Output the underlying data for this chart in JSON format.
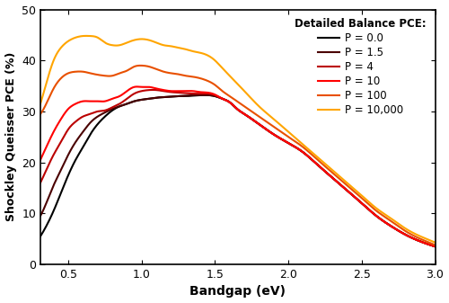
{
  "title": "",
  "xlabel": "Bandgap (eV)",
  "ylabel": "Shockley Queisser PCE (%)",
  "xlim": [
    0.31,
    3.0
  ],
  "ylim": [
    0,
    50
  ],
  "xticks": [
    0.5,
    1.0,
    1.5,
    2.0,
    2.5,
    3.0
  ],
  "yticks": [
    0,
    10,
    20,
    30,
    40,
    50
  ],
  "legend_title": "Detailed Balance PCE:",
  "legend_labels": [
    "P = 0.0",
    "P = 1.5",
    "P = 4",
    "P = 10",
    "P = 100",
    "P = 10,000"
  ],
  "colors": [
    "#000000",
    "#4a0000",
    "#bb0000",
    "#ff0000",
    "#e85000",
    "#ffa500"
  ],
  "linewidth": 1.5,
  "background": "#ffffff",
  "curves": {
    "P0": {
      "x": [
        0.31,
        0.35,
        0.4,
        0.45,
        0.5,
        0.55,
        0.6,
        0.65,
        0.7,
        0.75,
        0.8,
        0.85,
        0.9,
        0.95,
        1.0,
        1.05,
        1.1,
        1.15,
        1.2,
        1.25,
        1.3,
        1.35,
        1.4,
        1.45,
        1.5,
        1.55,
        1.6,
        1.65,
        1.7,
        1.8,
        1.9,
        2.0,
        2.1,
        2.2,
        2.3,
        2.4,
        2.5,
        2.6,
        2.7,
        2.8,
        2.9,
        3.0
      ],
      "y": [
        5.5,
        7.5,
        10.5,
        14.0,
        17.5,
        20.5,
        23.0,
        25.5,
        27.5,
        29.0,
        30.2,
        31.0,
        31.5,
        32.0,
        32.3,
        32.5,
        32.7,
        32.8,
        32.9,
        33.0,
        33.0,
        33.1,
        33.2,
        33.2,
        33.0,
        32.5,
        31.8,
        30.5,
        29.5,
        27.5,
        25.5,
        23.8,
        22.0,
        19.5,
        17.0,
        14.5,
        12.0,
        9.5,
        7.5,
        5.8,
        4.5,
        3.5
      ]
    },
    "P1_5": {
      "x": [
        0.31,
        0.35,
        0.4,
        0.45,
        0.5,
        0.55,
        0.6,
        0.65,
        0.7,
        0.75,
        0.8,
        0.85,
        0.9,
        0.95,
        1.0,
        1.05,
        1.1,
        1.15,
        1.2,
        1.25,
        1.3,
        1.35,
        1.4,
        1.45,
        1.5,
        1.55,
        1.6,
        1.65,
        1.7,
        1.8,
        1.9,
        2.0,
        2.1,
        2.2,
        2.3,
        2.4,
        2.5,
        2.6,
        2.7,
        2.8,
        2.9,
        3.0
      ],
      "y": [
        9.5,
        12.0,
        15.5,
        18.5,
        21.5,
        24.0,
        26.0,
        27.8,
        29.0,
        29.8,
        30.5,
        31.0,
        31.5,
        32.0,
        32.3,
        32.5,
        32.7,
        32.8,
        32.9,
        33.0,
        33.1,
        33.2,
        33.2,
        33.2,
        33.0,
        32.5,
        31.8,
        30.5,
        29.5,
        27.5,
        25.5,
        23.8,
        22.0,
        19.5,
        17.0,
        14.5,
        12.0,
        9.5,
        7.5,
        5.8,
        4.5,
        3.5
      ]
    },
    "P4": {
      "x": [
        0.31,
        0.35,
        0.4,
        0.45,
        0.5,
        0.55,
        0.6,
        0.65,
        0.7,
        0.75,
        0.8,
        0.85,
        0.9,
        0.95,
        1.0,
        1.05,
        1.1,
        1.15,
        1.2,
        1.25,
        1.3,
        1.35,
        1.4,
        1.45,
        1.5,
        1.55,
        1.6,
        1.65,
        1.7,
        1.8,
        1.9,
        2.0,
        2.1,
        2.2,
        2.3,
        2.4,
        2.5,
        2.6,
        2.7,
        2.8,
        2.9,
        3.0
      ],
      "y": [
        16.0,
        18.5,
        21.5,
        24.0,
        26.5,
        28.0,
        29.0,
        29.5,
        30.0,
        30.2,
        30.8,
        31.5,
        32.5,
        33.5,
        34.0,
        34.2,
        34.2,
        34.0,
        33.8,
        33.7,
        33.6,
        33.5,
        33.5,
        33.5,
        33.2,
        32.5,
        31.8,
        30.5,
        29.5,
        27.5,
        25.5,
        23.8,
        22.0,
        19.5,
        17.0,
        14.5,
        12.0,
        9.5,
        7.5,
        5.8,
        4.5,
        3.5
      ]
    },
    "P10": {
      "x": [
        0.31,
        0.35,
        0.4,
        0.45,
        0.5,
        0.55,
        0.6,
        0.65,
        0.7,
        0.75,
        0.8,
        0.85,
        0.9,
        0.95,
        1.0,
        1.05,
        1.1,
        1.15,
        1.2,
        1.25,
        1.3,
        1.35,
        1.4,
        1.45,
        1.5,
        1.55,
        1.6,
        1.65,
        1.7,
        1.8,
        1.9,
        2.0,
        2.1,
        2.2,
        2.3,
        2.4,
        2.5,
        2.6,
        2.7,
        2.8,
        2.9,
        3.0
      ],
      "y": [
        20.5,
        23.0,
        26.0,
        28.5,
        30.5,
        31.5,
        32.0,
        32.0,
        32.0,
        32.0,
        32.5,
        33.0,
        34.0,
        34.8,
        34.8,
        34.8,
        34.5,
        34.2,
        34.0,
        34.0,
        34.0,
        34.0,
        33.8,
        33.7,
        33.3,
        32.5,
        31.8,
        30.5,
        29.5,
        27.5,
        25.5,
        23.8,
        22.0,
        19.5,
        17.0,
        14.5,
        12.0,
        9.5,
        7.5,
        5.8,
        4.5,
        3.5
      ]
    },
    "P100": {
      "x": [
        0.31,
        0.35,
        0.4,
        0.45,
        0.5,
        0.55,
        0.6,
        0.65,
        0.7,
        0.75,
        0.8,
        0.85,
        0.9,
        0.95,
        1.0,
        1.05,
        1.1,
        1.15,
        1.2,
        1.25,
        1.3,
        1.35,
        1.4,
        1.45,
        1.5,
        1.55,
        1.6,
        1.65,
        1.7,
        1.8,
        1.9,
        2.0,
        2.1,
        2.2,
        2.3,
        2.4,
        2.5,
        2.6,
        2.7,
        2.8,
        2.9,
        3.0
      ],
      "y": [
        29.5,
        31.5,
        34.5,
        36.5,
        37.5,
        37.8,
        37.8,
        37.5,
        37.2,
        37.0,
        37.0,
        37.5,
        38.0,
        38.8,
        39.0,
        38.8,
        38.3,
        37.8,
        37.5,
        37.3,
        37.0,
        36.8,
        36.5,
        36.0,
        35.2,
        34.0,
        33.0,
        32.0,
        31.0,
        29.0,
        27.0,
        25.0,
        23.0,
        20.5,
        18.0,
        15.5,
        13.0,
        10.5,
        8.5,
        6.5,
        5.0,
        3.8
      ]
    },
    "P10000": {
      "x": [
        0.31,
        0.35,
        0.4,
        0.45,
        0.5,
        0.55,
        0.6,
        0.65,
        0.7,
        0.75,
        0.8,
        0.85,
        0.9,
        0.95,
        1.0,
        1.05,
        1.1,
        1.15,
        1.2,
        1.25,
        1.3,
        1.35,
        1.4,
        1.45,
        1.5,
        1.55,
        1.6,
        1.65,
        1.7,
        1.8,
        1.9,
        2.0,
        2.1,
        2.2,
        2.3,
        2.4,
        2.5,
        2.6,
        2.7,
        2.8,
        2.9,
        3.0
      ],
      "y": [
        31.5,
        35.5,
        40.0,
        42.5,
        43.8,
        44.5,
        44.8,
        44.8,
        44.5,
        43.5,
        43.0,
        43.0,
        43.5,
        44.0,
        44.2,
        44.0,
        43.5,
        43.0,
        42.8,
        42.5,
        42.2,
        41.8,
        41.5,
        41.0,
        40.0,
        38.5,
        37.0,
        35.5,
        34.0,
        31.0,
        28.5,
        26.0,
        23.5,
        21.0,
        18.5,
        16.0,
        13.5,
        11.0,
        9.0,
        7.0,
        5.5,
        4.3
      ]
    }
  }
}
